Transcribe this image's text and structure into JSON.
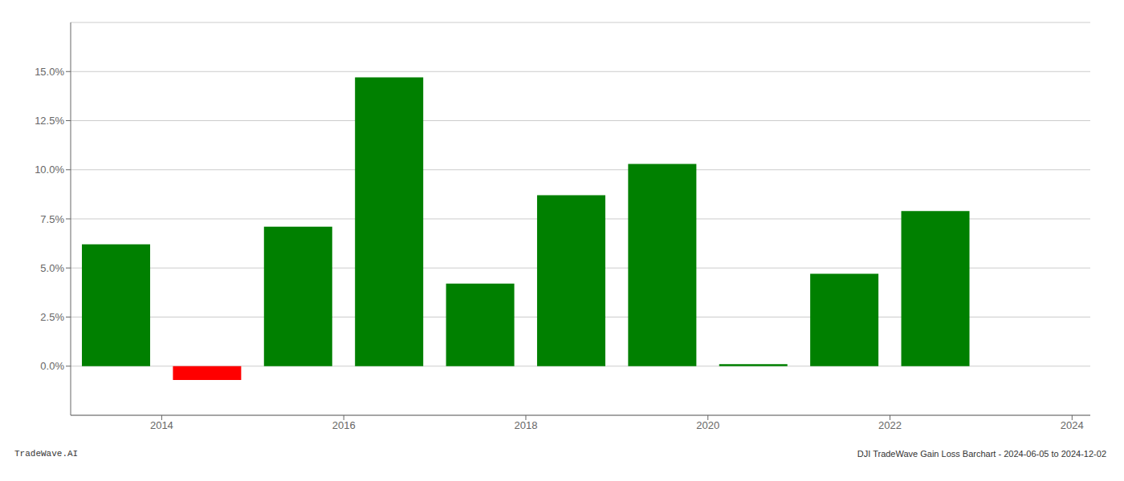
{
  "chart_data": {
    "type": "bar",
    "x": [
      2013.5,
      2014.5,
      2015.5,
      2016.5,
      2017.5,
      2018.5,
      2019.5,
      2020.5,
      2021.5,
      2022.5,
      2023.5
    ],
    "values": [
      0.062,
      -0.007,
      0.071,
      0.147,
      0.042,
      0.087,
      0.103,
      0.001,
      0.047,
      0.079,
      0.0
    ],
    "colors": [
      "#008000",
      "#ff0000",
      "#008000",
      "#008000",
      "#008000",
      "#008000",
      "#008000",
      "#008000",
      "#008000",
      "#008000",
      "#008000"
    ],
    "xlim": [
      2013.0,
      2024.2
    ],
    "xticks": [
      2014,
      2016,
      2018,
      2020,
      2022,
      2024
    ],
    "ylim": [
      -0.025,
      0.175
    ],
    "yticks": [
      {
        "value": 0.0,
        "label": "0.0%"
      },
      {
        "value": 0.025,
        "label": "2.5%"
      },
      {
        "value": 0.05,
        "label": "5.0%"
      },
      {
        "value": 0.075,
        "label": "7.5%"
      },
      {
        "value": 0.1,
        "label": "10.0%"
      },
      {
        "value": 0.125,
        "label": "12.5%"
      },
      {
        "value": 0.15,
        "label": "15.0%"
      }
    ],
    "grid": true,
    "annotations": [
      "TradeWave.AI",
      "DJI TradeWave Gain Loss Barchart - 2024-06-05 to 2024-12-02"
    ]
  }
}
